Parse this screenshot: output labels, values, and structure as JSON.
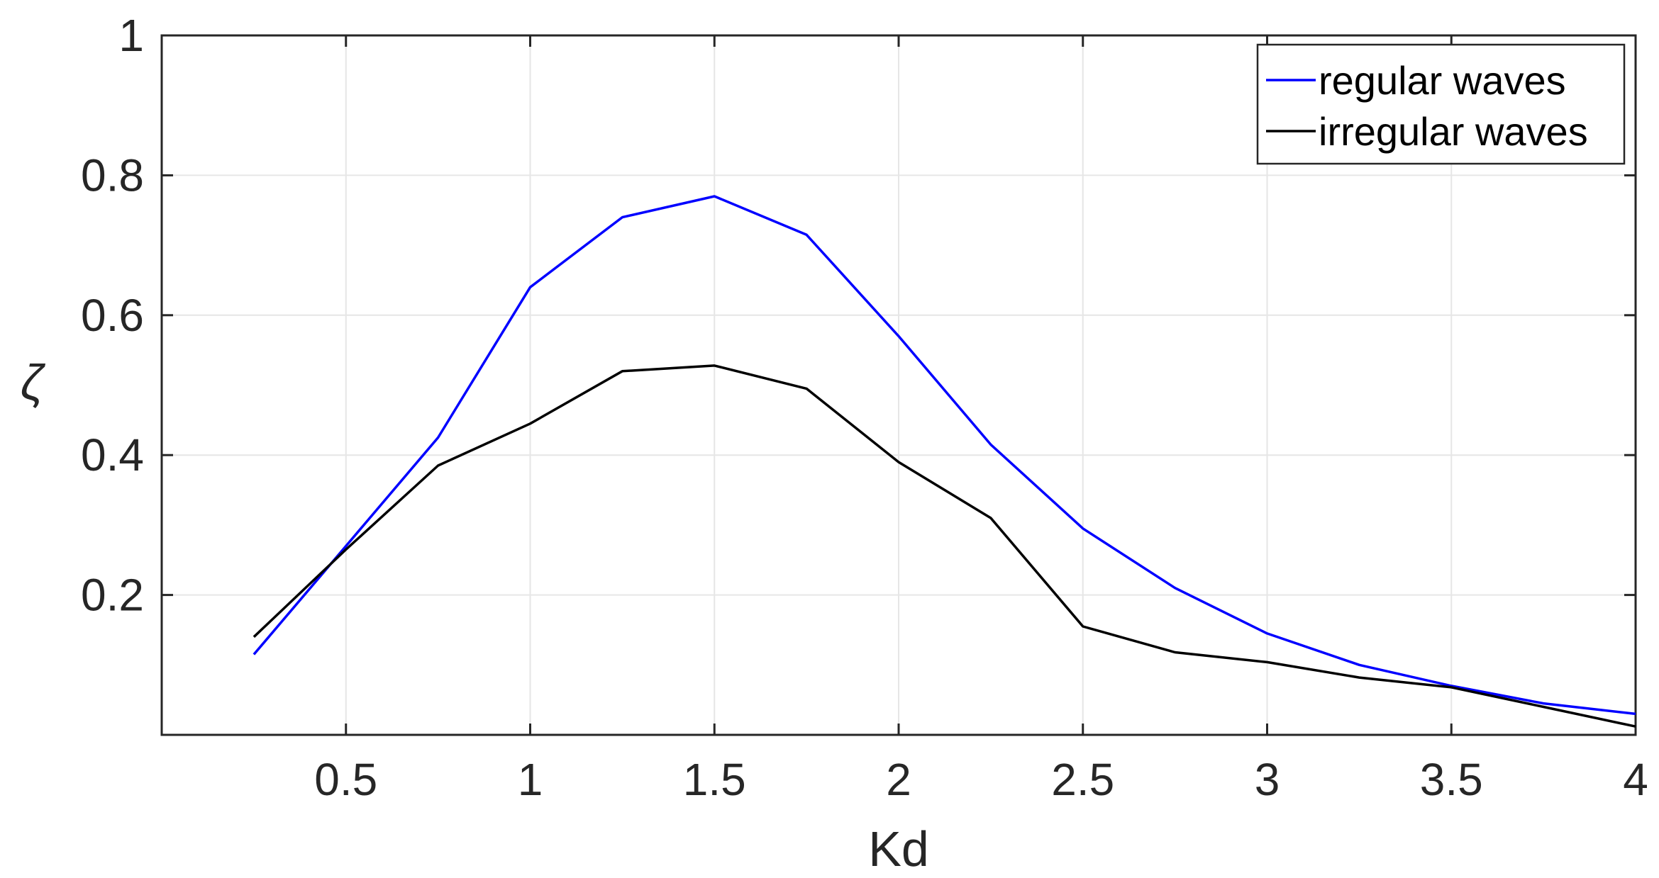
{
  "chart_data": {
    "type": "line",
    "xlabel": "Kd",
    "ylabel": "ζ",
    "xlim": [
      0,
      4
    ],
    "ylim": [
      0,
      1
    ],
    "xticks": [
      0.5,
      1,
      1.5,
      2,
      2.5,
      3,
      3.5,
      4
    ],
    "xtick_labels": [
      "0.5",
      "1",
      "1.5",
      "2",
      "2.5",
      "3",
      "3.5",
      "4"
    ],
    "yticks": [
      0.2,
      0.4,
      0.6,
      0.8,
      1
    ],
    "ytick_labels": [
      "0.2",
      "0.4",
      "0.6",
      "0.8",
      "1"
    ],
    "grid": true,
    "legend_position": "top-right",
    "x": [
      0.25,
      0.5,
      0.75,
      1,
      1.25,
      1.5,
      1.75,
      2,
      2.25,
      2.5,
      2.75,
      3,
      3.25,
      3.5,
      3.75,
      4
    ],
    "series": [
      {
        "name": "regular waves",
        "color": "#0000ff",
        "values": [
          0.115,
          0.27,
          0.425,
          0.64,
          0.74,
          0.77,
          0.715,
          0.57,
          0.415,
          0.295,
          0.21,
          0.145,
          0.1,
          0.07,
          0.045,
          0.03
        ]
      },
      {
        "name": "irregular waves",
        "color": "#000000",
        "values": [
          0.14,
          0.265,
          0.385,
          0.445,
          0.52,
          0.528,
          0.495,
          0.39,
          0.31,
          0.155,
          0.118,
          0.104,
          0.082,
          0.068,
          0.04,
          0.012
        ]
      }
    ]
  }
}
